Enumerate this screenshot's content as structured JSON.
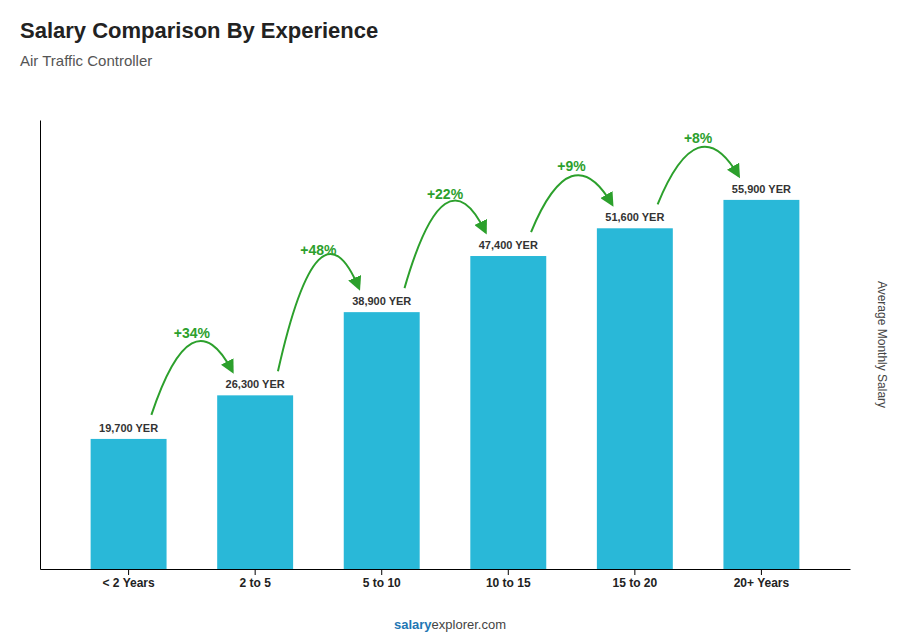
{
  "chart_data": {
    "type": "bar",
    "title": "Salary Comparison By Experience",
    "subtitle": "Air Traffic Controller",
    "ylabel": "Average Monthly Salary",
    "categories": [
      "< 2 Years",
      "2 to 5",
      "5 to 10",
      "10 to 15",
      "15 to 20",
      "20+ Years"
    ],
    "values": [
      19700,
      26300,
      38900,
      47400,
      51600,
      55900
    ],
    "value_labels": [
      "19,700 YER",
      "26,300 YER",
      "38,900 YER",
      "47,400 YER",
      "51,600 YER",
      "55,900 YER"
    ],
    "data_labels": true,
    "annotations": [
      "+34%",
      "+48%",
      "+22%",
      "+9%",
      "+8%"
    ],
    "footer": [
      "salary",
      "explorer.com"
    ],
    "color": "#29b8d8",
    "ylim": [
      0,
      68000
    ],
    "grid": false,
    "tick_labels": "x"
  }
}
